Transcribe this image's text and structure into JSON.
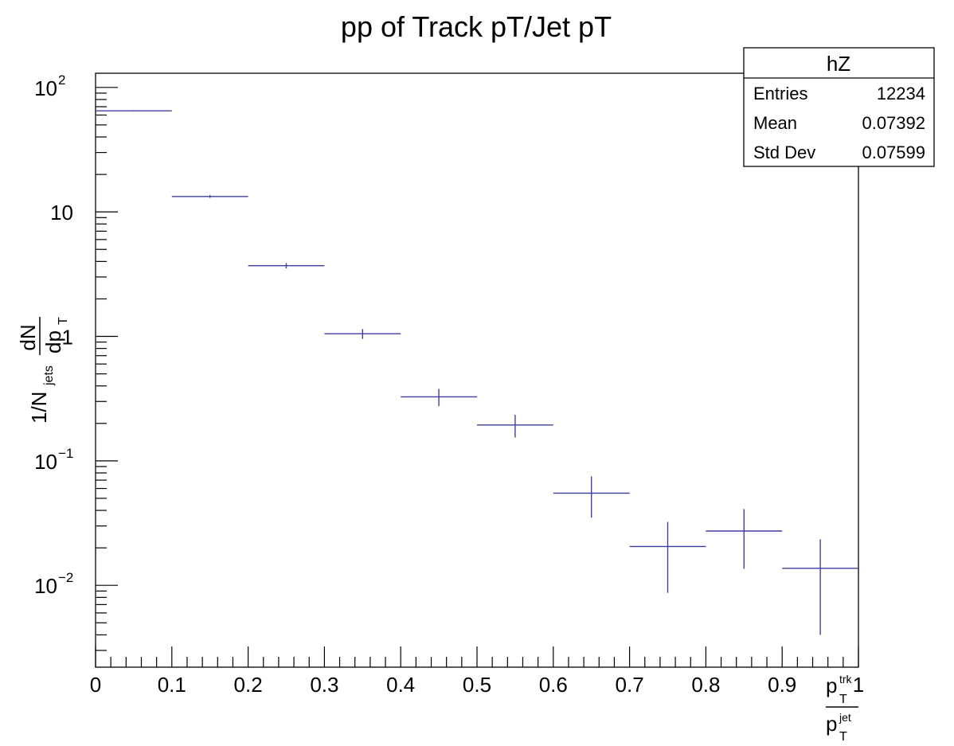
{
  "chart_data": {
    "type": "scatter",
    "title": "pp of Track pT/Jet pT",
    "scale_y": "log",
    "xlim": [
      0,
      1
    ],
    "ylim": [
      0.0022,
      130
    ],
    "x_ticks": [
      {
        "value": 0,
        "label": "0"
      },
      {
        "value": 0.1,
        "label": "0.1"
      },
      {
        "value": 0.2,
        "label": "0.2"
      },
      {
        "value": 0.3,
        "label": "0.3"
      },
      {
        "value": 0.4,
        "label": "0.4"
      },
      {
        "value": 0.5,
        "label": "0.5"
      },
      {
        "value": 0.6,
        "label": "0.6"
      },
      {
        "value": 0.7,
        "label": "0.7"
      },
      {
        "value": 0.8,
        "label": "0.8"
      },
      {
        "value": 0.9,
        "label": "0.9"
      },
      {
        "value": 1,
        "label": "1"
      }
    ],
    "y_ticks": [
      {
        "value": 100,
        "base": "10",
        "exp": "2"
      },
      {
        "value": 10,
        "base": "10",
        "exp": ""
      },
      {
        "value": 1,
        "base": "1",
        "exp": ""
      },
      {
        "value": 0.1,
        "base": "10",
        "exp": "−1"
      },
      {
        "value": 0.01,
        "base": "10",
        "exp": "−2"
      }
    ],
    "xlabel": {
      "num_main": "p",
      "num_sup": "trk",
      "num_sub": "T",
      "den_main": "p",
      "den_sup": "jet",
      "den_sub": "T"
    },
    "ylabel": {
      "prefix": "1/N",
      "sub": "jets",
      "num": "dN",
      "den_main": "dp",
      "den_sub": "T"
    },
    "color": "#3f3f9f",
    "grid": false,
    "series": [
      {
        "bins": [
          {
            "xlow": 0.0,
            "xhigh": 0.1,
            "y": 64.9,
            "err": 0.75
          },
          {
            "xlow": 0.1,
            "xhigh": 0.2,
            "y": 13.3,
            "err": 0.34
          },
          {
            "xlow": 0.2,
            "xhigh": 0.3,
            "y": 3.7,
            "err": 0.18
          },
          {
            "xlow": 0.3,
            "xhigh": 0.4,
            "y": 1.05,
            "err": 0.095
          },
          {
            "xlow": 0.4,
            "xhigh": 0.5,
            "y": 0.327,
            "err": 0.052
          },
          {
            "xlow": 0.5,
            "xhigh": 0.6,
            "y": 0.194,
            "err": 0.04
          },
          {
            "xlow": 0.6,
            "xhigh": 0.7,
            "y": 0.055,
            "err": 0.02
          },
          {
            "xlow": 0.7,
            "xhigh": 0.8,
            "y": 0.0205,
            "err": 0.0118
          },
          {
            "xlow": 0.8,
            "xhigh": 0.9,
            "y": 0.0273,
            "err": 0.0137
          },
          {
            "xlow": 0.9,
            "xhigh": 1.0,
            "y": 0.0137,
            "err": 0.0097
          }
        ]
      }
    ]
  },
  "stats_box": {
    "title": "hZ",
    "rows": [
      {
        "label": "Entries",
        "value": "12234"
      },
      {
        "label": "Mean",
        "value": "0.07392"
      },
      {
        "label": "Std Dev",
        "value": "0.07599"
      }
    ]
  }
}
